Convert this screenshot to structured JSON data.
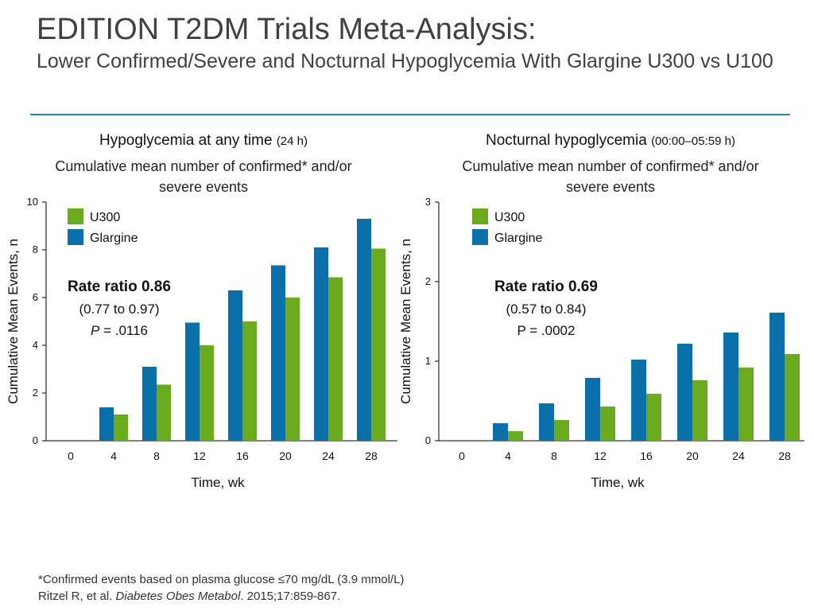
{
  "title": "EDITION T2DM Trials Meta-Analysis:",
  "subtitle": "Lower Confirmed/Severe and Nocturnal Hypoglycemia With Glargine U300 vs U100",
  "colors": {
    "u300": "#6aab1e",
    "glargine": "#0b6faa",
    "rule": "#2b8ab5"
  },
  "chart_data": [
    {
      "type": "bar",
      "title": "Hypoglycemia at any time",
      "title_suffix": "(24 h)",
      "subtitle": "Cumulative mean number of confirmed* and/or severe events",
      "xlabel": "Time, wk",
      "ylabel": "Cumulative Mean Events, n",
      "categories": [
        "0",
        "4",
        "8",
        "12",
        "16",
        "20",
        "24",
        "28"
      ],
      "ylim": [
        0,
        10
      ],
      "yticks": [
        0,
        2,
        4,
        6,
        8,
        10
      ],
      "grid": false,
      "legend_position": "top-left",
      "series": [
        {
          "name": "U300",
          "values": [
            0,
            1.1,
            2.35,
            4.0,
            5.0,
            6.0,
            6.85,
            8.05
          ]
        },
        {
          "name": "Glargine",
          "values": [
            0,
            1.4,
            3.1,
            4.95,
            6.3,
            7.35,
            8.1,
            9.3
          ]
        }
      ],
      "annotation": {
        "line1": "Rate ratio 0.86",
        "line2": "(0.77 to 0.97)",
        "line3_italic": "P",
        "line3_rest": " = .0116"
      }
    },
    {
      "type": "bar",
      "title": "Nocturnal hypoglycemia",
      "title_suffix": "(00:00–05:59 h)",
      "subtitle": "Cumulative mean number of confirmed* and/or severe events",
      "xlabel": "Time, wk",
      "ylabel": "Cumulative Mean Events, n",
      "categories": [
        "0",
        "4",
        "8",
        "12",
        "16",
        "20",
        "24",
        "28"
      ],
      "ylim": [
        0,
        3
      ],
      "yticks": [
        0,
        1,
        2,
        3
      ],
      "grid": false,
      "legend_position": "top-left",
      "series": [
        {
          "name": "U300",
          "values": [
            0,
            0.12,
            0.26,
            0.43,
            0.59,
            0.76,
            0.92,
            1.09
          ]
        },
        {
          "name": "Glargine",
          "values": [
            0,
            0.22,
            0.47,
            0.79,
            1.02,
            1.22,
            1.36,
            1.61
          ]
        }
      ],
      "annotation": {
        "line1": "Rate ratio 0.69",
        "line2": "(0.57 to 0.84)",
        "line3_italic": "",
        "line3_rest": "P = .0002"
      }
    }
  ],
  "footnote": {
    "line1": "*Confirmed events based on plasma glucose ≤70 mg/dL (3.9 mmol/L)",
    "citation_authors": "Ritzel R, et al. ",
    "citation_journal": "Diabetes Obes Metabol",
    "citation_rest": ". 2015;17:859-867."
  }
}
